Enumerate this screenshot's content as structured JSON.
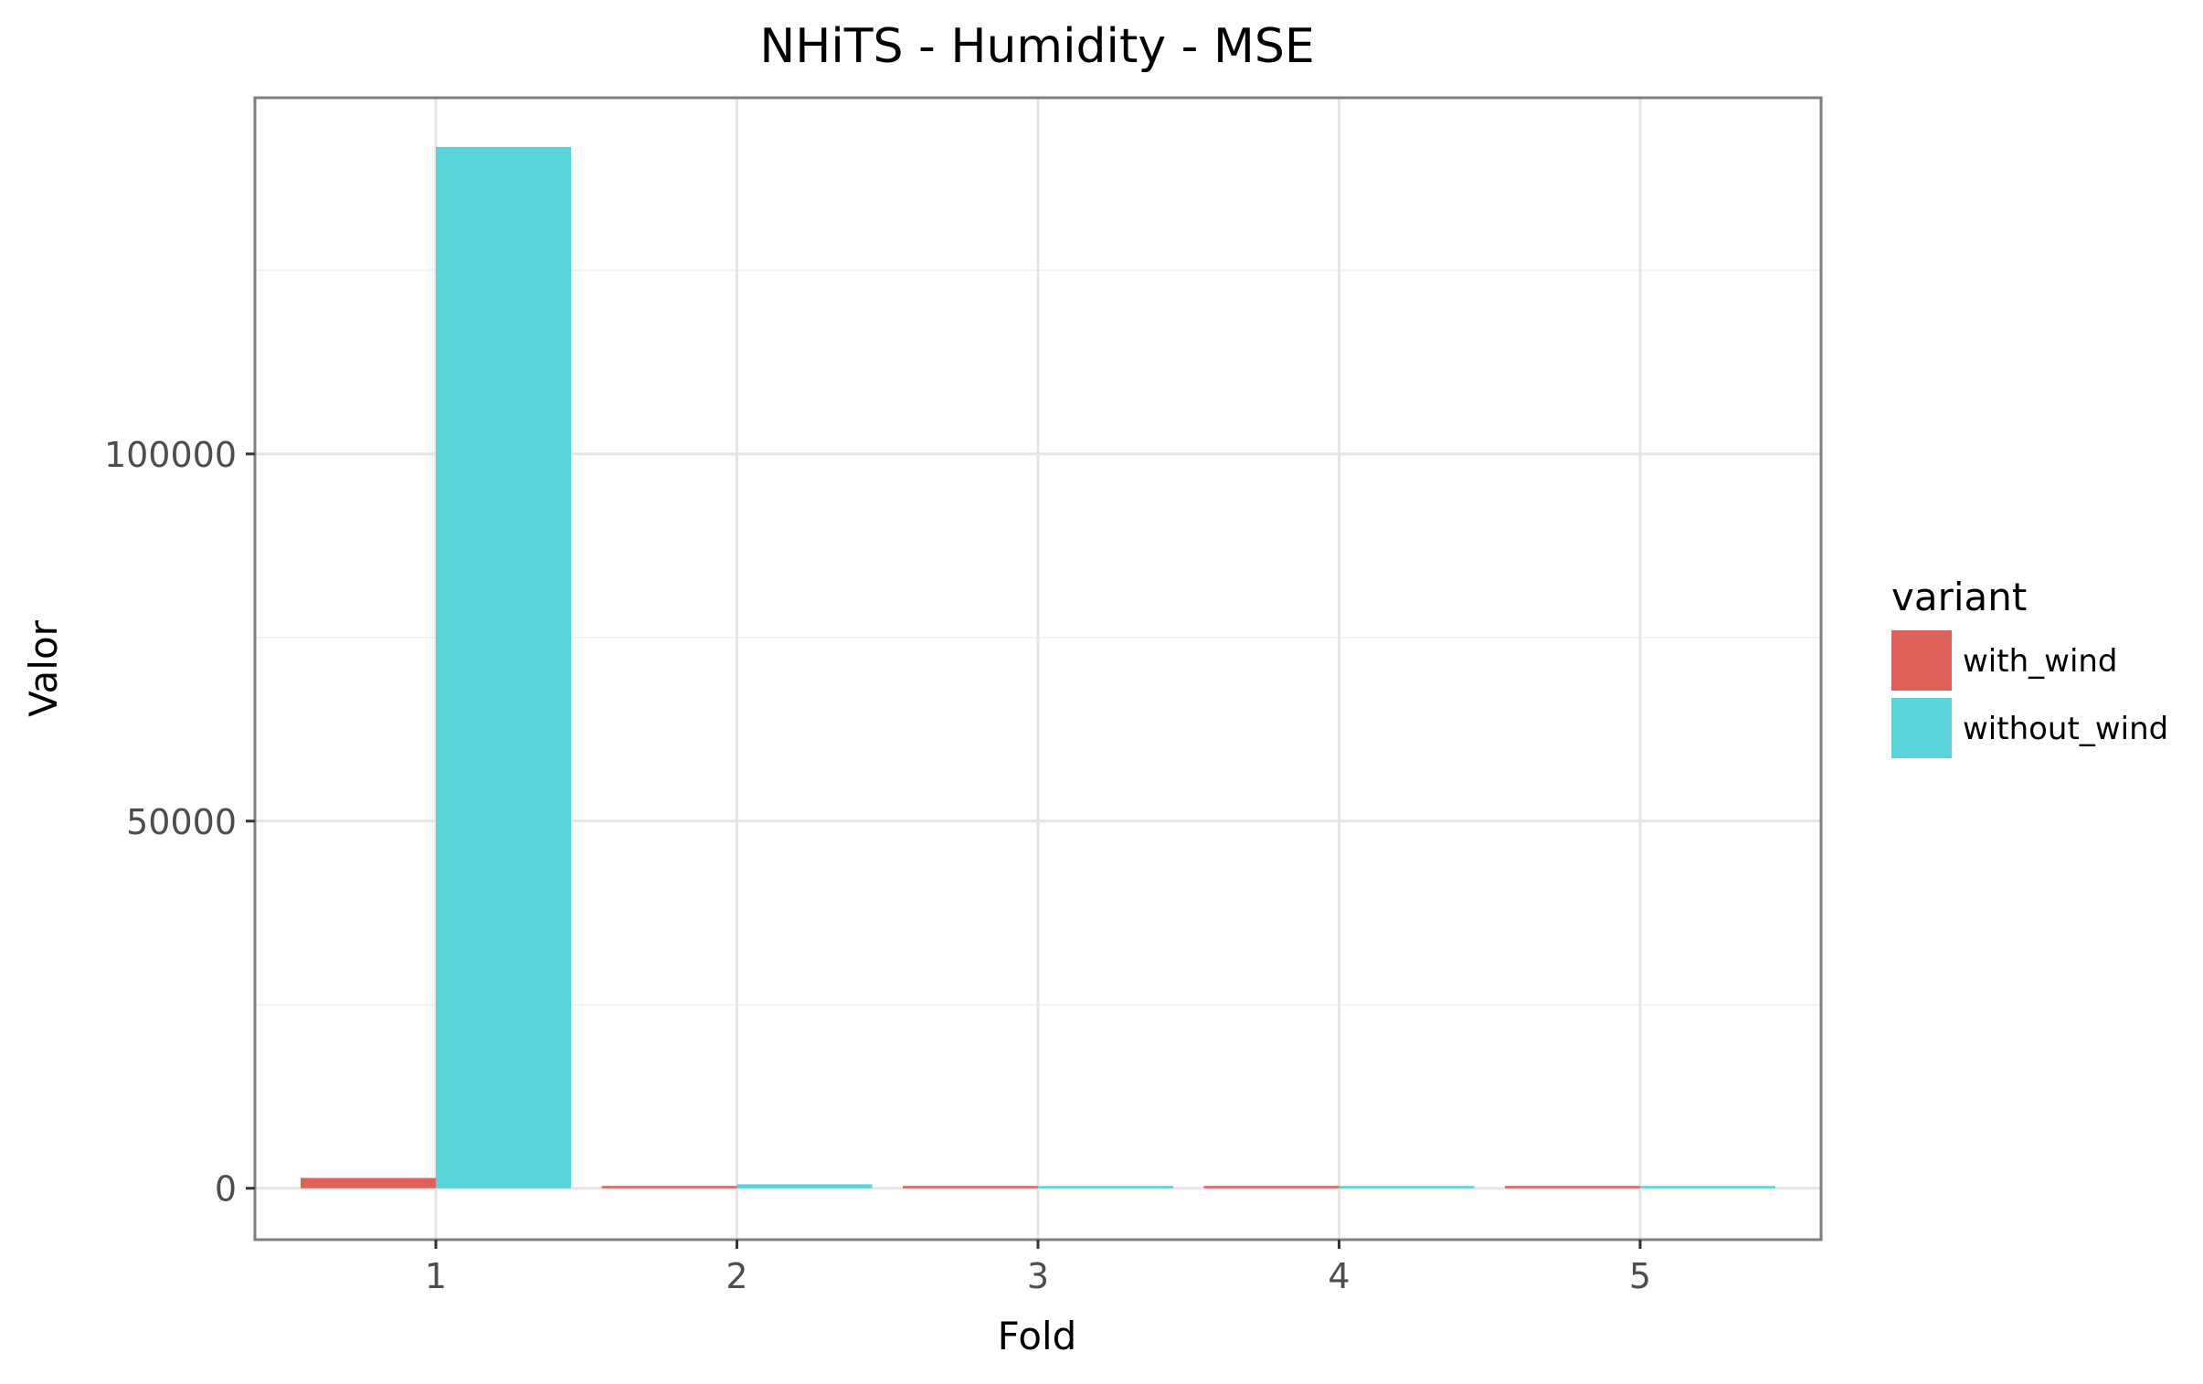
{
  "chart_data": {
    "type": "bar",
    "title": "NHiTS - Humidity - MSE",
    "xlabel": "Fold",
    "ylabel": "Valor",
    "categories": [
      "1",
      "2",
      "3",
      "4",
      "5"
    ],
    "series": [
      {
        "name": "with_wind",
        "color": "#E0605A",
        "values": [
          1400,
          30,
          10,
          140,
          240
        ]
      },
      {
        "name": "without_wind",
        "color": "#59D2DA",
        "values": [
          141800,
          540,
          180,
          120,
          160
        ]
      }
    ],
    "yticks": [
      0,
      50000,
      100000
    ],
    "ytick_labels": [
      "0",
      "50000",
      "100000"
    ],
    "ylim": [
      -7000,
      148500
    ],
    "grid": true,
    "legend": {
      "title": "variant",
      "placement": "right"
    }
  }
}
